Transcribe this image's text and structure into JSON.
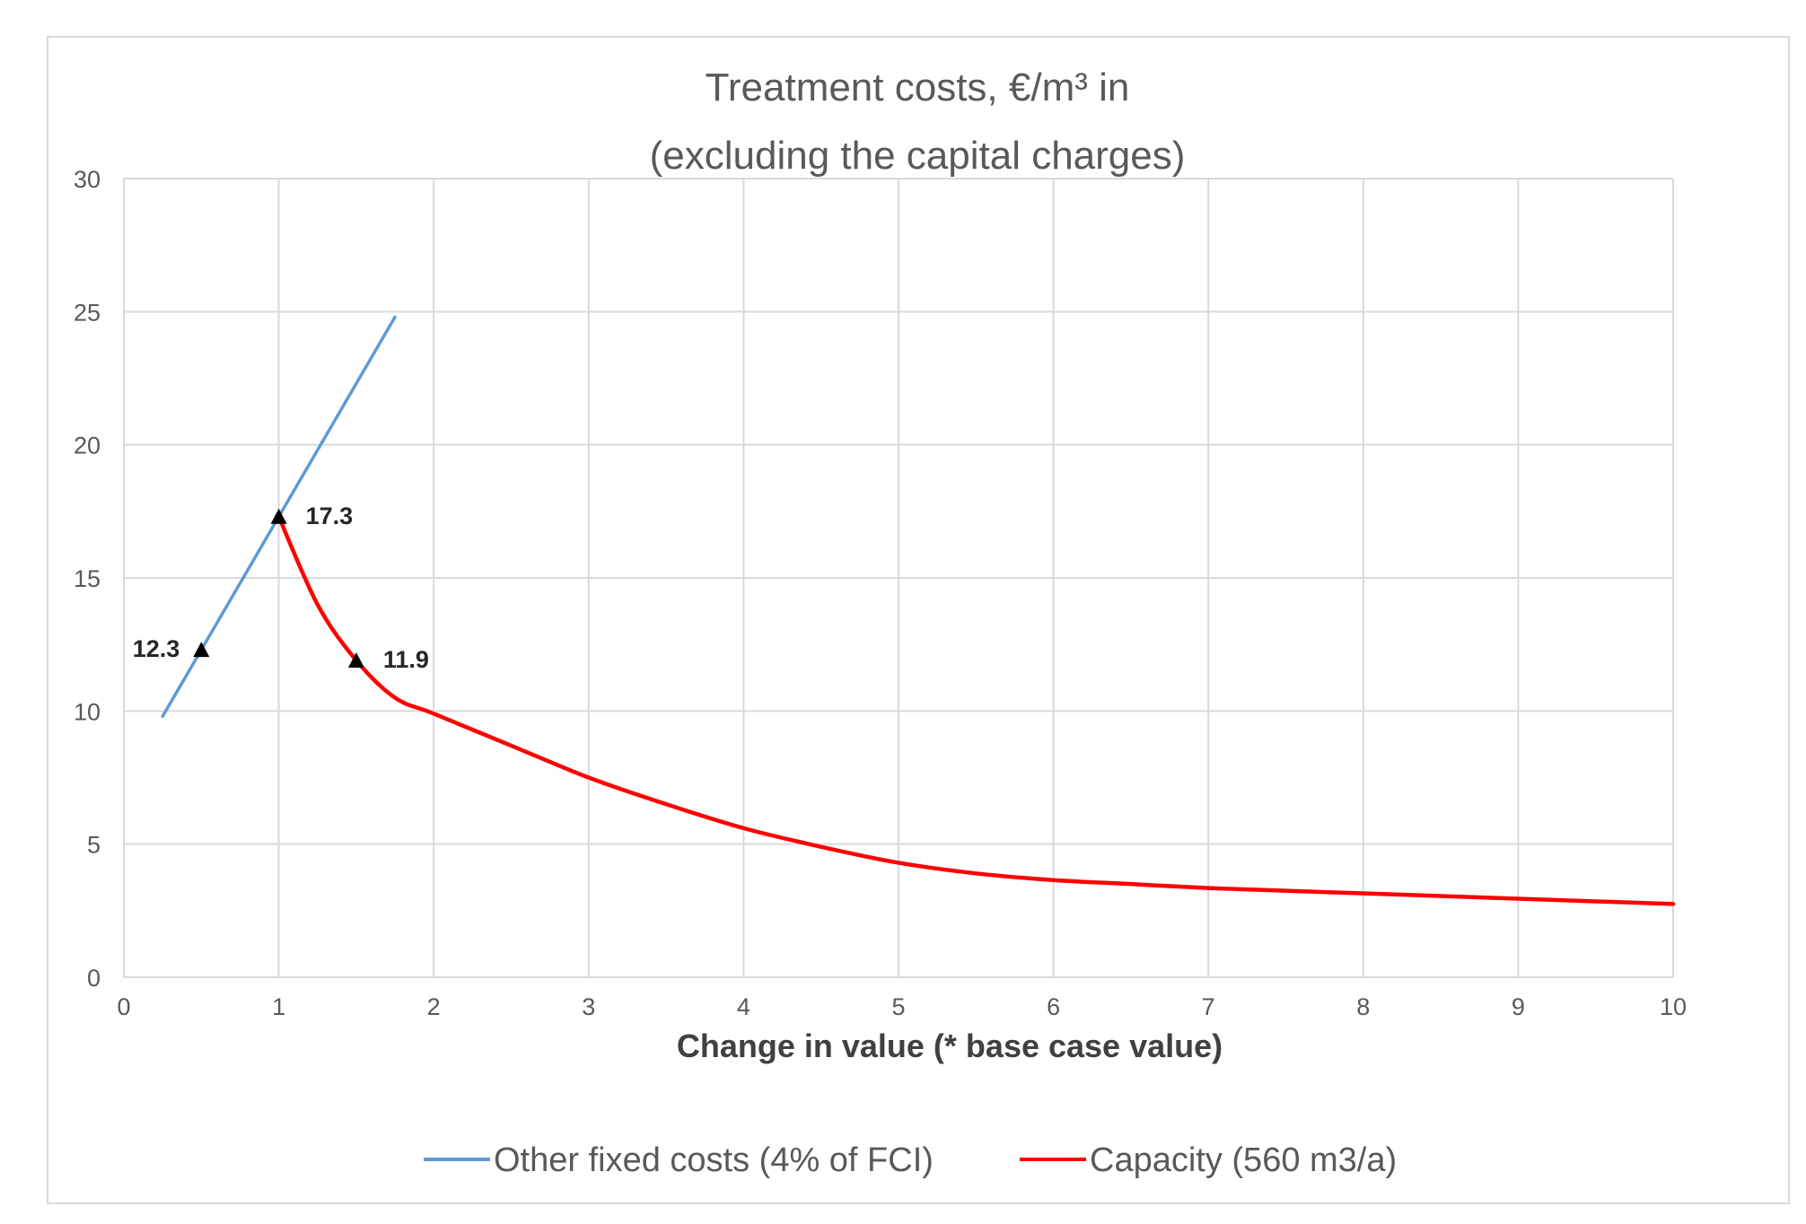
{
  "chart_data": {
    "type": "line",
    "title_line1": "Treatment costs, €/m³ in",
    "title_line2": "(excluding the capital charges)",
    "xlabel": "Change in value (* base case value)",
    "ylabel": "",
    "xlim": [
      0,
      10
    ],
    "ylim": [
      0,
      30
    ],
    "x_ticks": [
      "0",
      "1",
      "2",
      "3",
      "4",
      "5",
      "6",
      "7",
      "8",
      "9",
      "10"
    ],
    "y_ticks": [
      "0",
      "5",
      "10",
      "15",
      "20",
      "25",
      "30"
    ],
    "grid": true,
    "legend_position": "bottom",
    "series": [
      {
        "name": "Other fixed costs (4% of FCI)",
        "color": "#5b9bd5",
        "x": [
          0.25,
          0.5,
          1.0,
          1.75
        ],
        "y": [
          9.8,
          12.3,
          17.3,
          24.8
        ]
      },
      {
        "name": "Capacity (560 m3/a)",
        "color": "#ff0000",
        "x": [
          1.0,
          1.25,
          1.5,
          1.75,
          2,
          2.5,
          3,
          3.5,
          4,
          4.5,
          5,
          5.5,
          6,
          6.5,
          7,
          7.5,
          8,
          8.5,
          9,
          9.5,
          10
        ],
        "y": [
          17.3,
          14.0,
          11.9,
          10.5,
          9.9,
          8.7,
          7.5,
          6.5,
          5.6,
          4.9,
          4.3,
          3.9,
          3.65,
          3.5,
          3.35,
          3.25,
          3.15,
          3.05,
          2.95,
          2.85,
          2.75
        ]
      }
    ],
    "annotations": [
      {
        "x": 0.5,
        "y": 12.3,
        "label": "12.3",
        "side": "left"
      },
      {
        "x": 1.0,
        "y": 17.3,
        "label": "17.3",
        "side": "right"
      },
      {
        "x": 1.5,
        "y": 11.9,
        "label": "11.9",
        "side": "right"
      }
    ]
  }
}
